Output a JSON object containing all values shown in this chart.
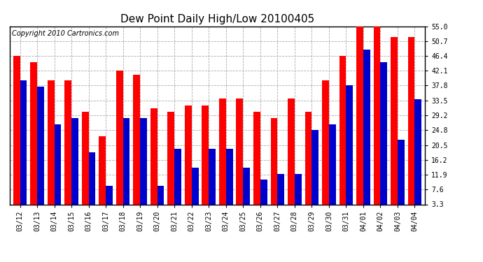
{
  "title": "Dew Point Daily High/Low 20100405",
  "copyright": "Copyright 2010 Cartronics.com",
  "dates": [
    "03/12",
    "03/13",
    "03/14",
    "03/15",
    "03/16",
    "03/17",
    "03/18",
    "03/19",
    "03/20",
    "03/21",
    "03/22",
    "03/23",
    "03/24",
    "03/25",
    "03/26",
    "03/27",
    "03/28",
    "03/29",
    "03/30",
    "03/31",
    "04/01",
    "04/02",
    "04/03",
    "04/04"
  ],
  "highs": [
    46.4,
    44.6,
    39.2,
    39.2,
    30.2,
    23.0,
    42.1,
    41.0,
    31.1,
    30.2,
    32.0,
    32.0,
    34.0,
    34.0,
    30.2,
    28.4,
    34.0,
    30.2,
    39.2,
    46.4,
    55.0,
    55.0,
    51.8,
    51.8
  ],
  "lows": [
    39.2,
    37.4,
    26.6,
    28.4,
    18.5,
    8.6,
    28.4,
    28.4,
    8.6,
    19.4,
    14.0,
    19.4,
    19.4,
    14.0,
    10.4,
    12.2,
    12.2,
    24.8,
    26.6,
    37.8,
    48.2,
    44.6,
    22.0,
    33.8
  ],
  "high_color": "#ff0000",
  "low_color": "#0000cc",
  "bg_color": "#ffffff",
  "plot_bg_color": "#ffffff",
  "grid_color": "#aaaaaa",
  "yticks": [
    3.3,
    7.6,
    11.9,
    16.2,
    20.5,
    24.8,
    29.2,
    33.5,
    37.8,
    42.1,
    46.4,
    50.7,
    55.0
  ],
  "ymin": 3.3,
  "ymax": 55.0,
  "title_fontsize": 11,
  "copyright_fontsize": 7,
  "tick_fontsize": 7,
  "bar_width": 0.4
}
